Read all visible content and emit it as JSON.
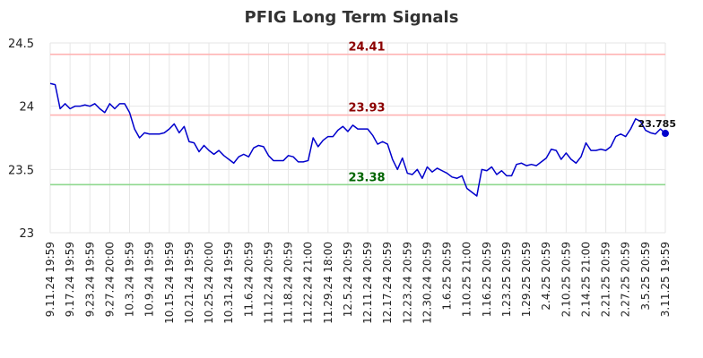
{
  "chart_data": {
    "type": "line",
    "title": "PFIG Long Term Signals",
    "xlabel": "",
    "ylabel": "",
    "ylim": [
      23,
      24.5
    ],
    "yticks": [
      23,
      23.5,
      24,
      24.5
    ],
    "ytick_labels": [
      "23",
      "23.5",
      "24",
      "24.5"
    ],
    "grid": true,
    "colors": {
      "line": "#0000cc",
      "upper": "#ffb3b3",
      "upper_text": "#8b0000",
      "lower": "#8fd88f",
      "lower_text": "#006400",
      "grid": "#e6e6e6"
    },
    "reference_lines": [
      {
        "value": 24.41,
        "label": "24.41",
        "kind": "resistance"
      },
      {
        "value": 23.93,
        "label": "23.93",
        "kind": "resistance"
      },
      {
        "value": 23.38,
        "label": "23.38",
        "kind": "support"
      }
    ],
    "x_tick_labels": [
      "9.11.24 19:59",
      "9.17.24 19:59",
      "9.23.24 19:59",
      "9.27.24 20:00",
      "10.3.24 19:59",
      "10.9.24 19:59",
      "10.15.24 19:59",
      "10.21.24 19:59",
      "10.25.24 20:00",
      "10.31.24 19:59",
      "11.6.24 20:59",
      "11.12.24 20:59",
      "11.18.24 20:59",
      "11.22.24 21:00",
      "11.29.24 18:00",
      "12.5.24 20:59",
      "12.11.24 20:59",
      "12.17.24 20:59",
      "12.23.24 20:59",
      "12.30.24 20:59",
      "1.6.25 20:59",
      "1.10.25 21:00",
      "1.16.25 20:59",
      "1.23.25 20:59",
      "1.29.25 20:59",
      "2.4.25 20:59",
      "2.10.25 20:59",
      "2.14.25 21:00",
      "2.21.25 20:59",
      "2.27.25 20:59",
      "3.5.25 20:59",
      "3.11.25 19:59"
    ],
    "series": [
      {
        "values": [
          24.18,
          24.17,
          23.98,
          24.02,
          23.98,
          24.0,
          24.0,
          24.01,
          24.0,
          24.02,
          23.98,
          23.95,
          24.02,
          23.98,
          24.02,
          24.02,
          23.95,
          23.82,
          23.75,
          23.79,
          23.78,
          23.78,
          23.78,
          23.79,
          23.82,
          23.86,
          23.79,
          23.84,
          23.72,
          23.71,
          23.64,
          23.69,
          23.65,
          23.62,
          23.65,
          23.61,
          23.58,
          23.55,
          23.6,
          23.62,
          23.6,
          23.67,
          23.69,
          23.68,
          23.61,
          23.57,
          23.57,
          23.57,
          23.61,
          23.6,
          23.56,
          23.56,
          23.57,
          23.75,
          23.68,
          23.73,
          23.76,
          23.76,
          23.81,
          23.84,
          23.8,
          23.85,
          23.82,
          23.82,
          23.82,
          23.77,
          23.7,
          23.72,
          23.7,
          23.58,
          23.5,
          23.59,
          23.47,
          23.46,
          23.5,
          23.43,
          23.52,
          23.48,
          23.51,
          23.49,
          23.47,
          23.44,
          23.43,
          23.45,
          23.35,
          23.32,
          23.29,
          23.5,
          23.49,
          23.52,
          23.46,
          23.49,
          23.45,
          23.45,
          23.54,
          23.55,
          23.53,
          23.54,
          23.53,
          23.56,
          23.59,
          23.66,
          23.65,
          23.58,
          23.63,
          23.58,
          23.55,
          23.6,
          23.71,
          23.65,
          23.65,
          23.66,
          23.65,
          23.68,
          23.76,
          23.78,
          23.76,
          23.82,
          23.9,
          23.88,
          23.81,
          23.79,
          23.78,
          23.82,
          23.785
        ]
      }
    ],
    "last_value_label": "23.785"
  }
}
